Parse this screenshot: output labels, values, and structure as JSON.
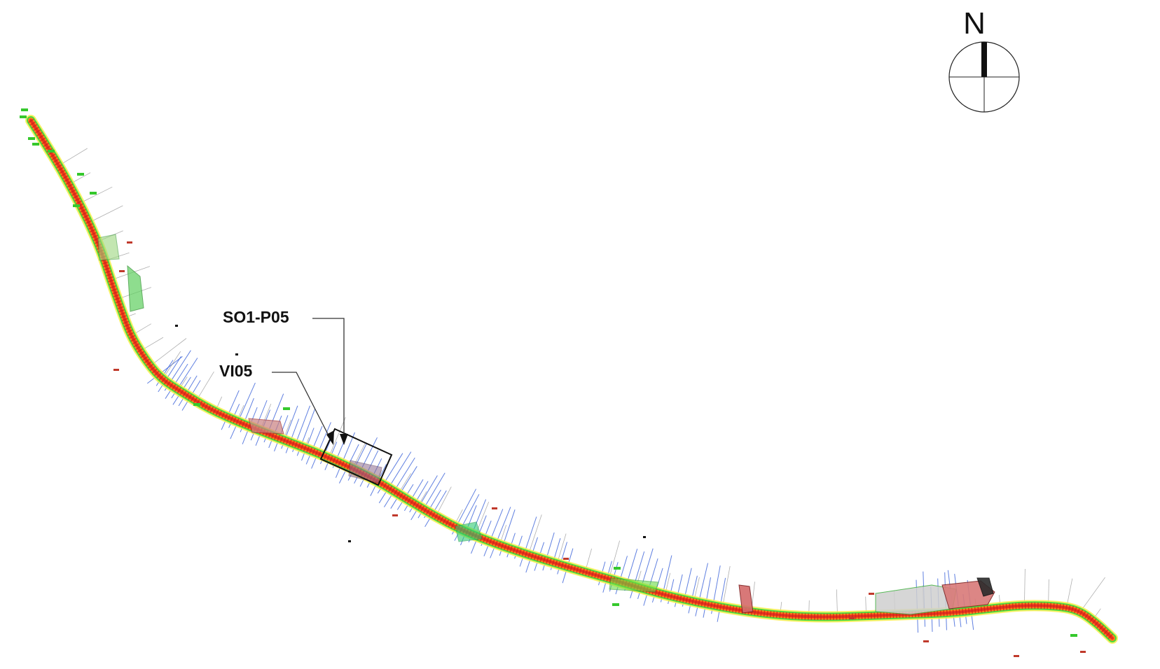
{
  "north_arrow": {
    "label": "N"
  },
  "callouts": [
    {
      "id": "so1-p05",
      "label": "SO1-P05"
    },
    {
      "id": "vi05",
      "label": "VI05"
    }
  ],
  "colors": {
    "route_core": "#e8321e",
    "route_orange": "#ff7a1a",
    "route_yellow": "#f6ee4a",
    "route_green": "#37d83a",
    "cross_section_blue": "#2a55d6",
    "annotation_red": "#c0392b",
    "gray_lines": "#7a7a7a",
    "label_green": "#35c82c",
    "ink": "#111111"
  }
}
